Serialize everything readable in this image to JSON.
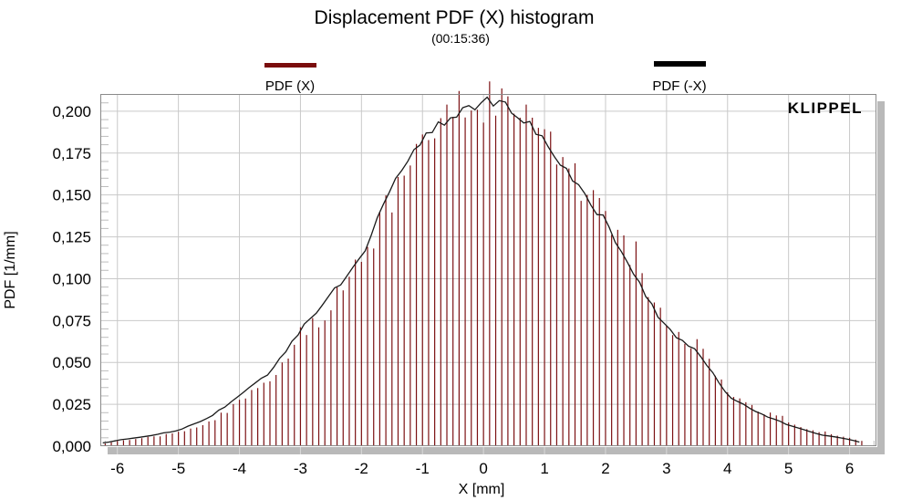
{
  "title": "Displacement PDF (X) histogram",
  "subtitle": "(00:15:36)",
  "watermark": "KLIPPEL",
  "legend": [
    {
      "label": "PDF (X)",
      "color": "#7a0d0d",
      "swatch_border": "#3f0707"
    },
    {
      "label": "PDF (-X)",
      "color": "#000000",
      "swatch_border": "#000000"
    }
  ],
  "colors": {
    "grid": "#c9c9c9",
    "minor_tick": "#bdbdbd",
    "below_axis_tick": "#d9d9d9",
    "frame": "#8a8a8a",
    "shadow": "#b9b9b9",
    "bars": "#7c1113",
    "curve": "#1a1a1a",
    "watermark": "#1e3a70",
    "plot_bg": "#ffffff"
  },
  "axes": {
    "x": {
      "label": "X [mm]",
      "tick_values": [
        -6,
        -5,
        -4,
        -3,
        -2,
        -1,
        0,
        1,
        2,
        3,
        4,
        5,
        6
      ],
      "tick_labels": [
        "-6",
        "-5",
        "-4",
        "-3",
        "-2",
        "-1",
        "0",
        "1",
        "2",
        "3",
        "4",
        "5",
        "6"
      ],
      "minor_step": 0.2
    },
    "y": {
      "label": "PDF [1/mm]",
      "tick_values": [
        0,
        0.025,
        0.05,
        0.075,
        0.1,
        0.125,
        0.15,
        0.175,
        0.2
      ],
      "tick_labels": [
        "0,000",
        "0,025",
        "0,050",
        "0,075",
        "0,100",
        "0,125",
        "0,150",
        "0,175",
        "0,200"
      ],
      "minor_step": 0.005
    }
  },
  "chart_data": {
    "type": "bar",
    "title": "Displacement PDF (X) histogram",
    "subtitle": "(00:15:36)",
    "xlabel": "X [mm]",
    "ylabel": "PDF [1/mm]",
    "xlim": [
      -6.28,
      6.44
    ],
    "ylim": [
      0,
      0.2103
    ],
    "grid": true,
    "legend_position": "top",
    "x": [
      -6.2,
      -6,
      -5.5,
      -5,
      -4.5,
      -4,
      -3.5,
      -3,
      -2.5,
      -2,
      -1.5,
      -1,
      -0.5,
      0,
      0.5,
      1,
      1.5,
      2,
      2.5,
      3,
      3.5,
      4,
      4.5,
      5,
      5.5,
      6,
      6.2
    ],
    "series": [
      {
        "name": "PDF (X)",
        "type": "histogram",
        "color": "#7c1113",
        "bin_width": 0.1,
        "bar_range": [
          -6.2,
          6.2
        ],
        "values": [
          0.0015,
          0.003,
          0.005,
          0.008,
          0.014,
          0.026,
          0.04,
          0.063,
          0.085,
          0.11,
          0.15,
          0.18,
          0.198,
          0.204,
          0.202,
          0.185,
          0.158,
          0.138,
          0.104,
          0.074,
          0.06,
          0.033,
          0.022,
          0.014,
          0.008,
          0.005,
          0.003
        ]
      },
      {
        "name": "PDF (-X)",
        "type": "line",
        "color": "#1a1a1a",
        "values": [
          0.002,
          0.0035,
          0.006,
          0.0095,
          0.017,
          0.03,
          0.044,
          0.069,
          0.09,
          0.113,
          0.155,
          0.183,
          0.199,
          0.2055,
          0.201,
          0.183,
          0.156,
          0.135,
          0.1,
          0.07,
          0.057,
          0.03,
          0.02,
          0.0125,
          0.007,
          0.004,
          0.002
        ]
      }
    ],
    "noise_seed": 42,
    "bar_noise": 0.07,
    "spike_prob": 0.07,
    "spike_gain": 1.12,
    "line_noise": 0.02
  }
}
